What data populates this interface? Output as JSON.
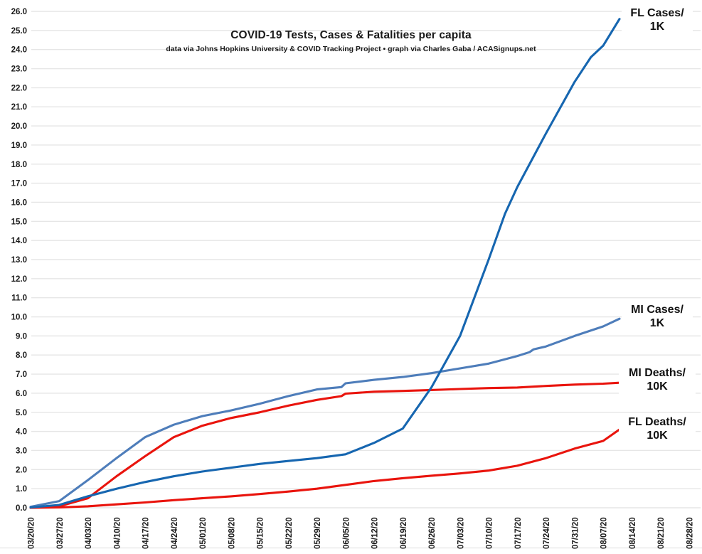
{
  "header": {
    "title": "COVID-19 Tests, Cases & Fatalities per capita",
    "subtitle": "data via Johns Hopkins University & COVID Tracking Project • graph via Charles Gaba / ACASignups.net"
  },
  "chart_data": {
    "type": "line",
    "title": "COVID-19 Tests, Cases & Fatalities per capita",
    "subtitle": "data via Johns Hopkins University & COVID Tracking Project • graph via Charles Gaba / ACASignups.net",
    "grid": true,
    "legend_position": "right-end-of-lines",
    "x_axis": {
      "tick_dates": [
        "03/20/20",
        "03/27/20",
        "04/03/20",
        "04/10/20",
        "04/17/20",
        "04/24/20",
        "05/01/20",
        "05/08/20",
        "05/15/20",
        "05/22/20",
        "05/29/20",
        "06/05/20",
        "06/12/20",
        "06/19/20",
        "06/26/20",
        "07/03/20",
        "07/10/20",
        "07/17/20",
        "07/24/20",
        "07/31/20",
        "08/07/20",
        "08/14/20",
        "08/21/20",
        "08/28/20"
      ]
    },
    "y_axis": {
      "min": 0,
      "max": 26,
      "tick_step": 1,
      "tick_labels": [
        "0.0",
        "1.0",
        "2.0",
        "3.0",
        "4.0",
        "5.0",
        "6.0",
        "7.0",
        "8.0",
        "9.0",
        "10.0",
        "11.0",
        "12.0",
        "13.0",
        "14.0",
        "15.0",
        "16.0",
        "17.0",
        "18.0",
        "19.0",
        "20.0",
        "21.0",
        "22.0",
        "23.0",
        "24.0",
        "25.0",
        "26.0"
      ]
    },
    "colors": {
      "fl_cases": "#1666b0",
      "mi_cases": "#4e7dba",
      "deaths_red": "#e9140d",
      "gridline": "#e6e6e6",
      "text": "#1a1a1a"
    },
    "series": [
      {
        "id": "mi-deaths",
        "label_line1": "MI Deaths/",
        "label_line2": "10K",
        "color": "#e9140d",
        "points": [
          [
            "03/20/20",
            0.0
          ],
          [
            "03/27/20",
            0.08
          ],
          [
            "04/03/20",
            0.5
          ],
          [
            "04/10/20",
            1.65
          ],
          [
            "04/17/20",
            2.7
          ],
          [
            "04/24/20",
            3.7
          ],
          [
            "05/01/20",
            4.3
          ],
          [
            "05/08/20",
            4.7
          ],
          [
            "05/15/20",
            5.0
          ],
          [
            "05/22/20",
            5.35
          ],
          [
            "05/29/20",
            5.65
          ],
          [
            "06/04/20",
            5.85
          ],
          [
            "06/05/20",
            5.98
          ],
          [
            "06/12/20",
            6.08
          ],
          [
            "06/19/20",
            6.12
          ],
          [
            "06/26/20",
            6.17
          ],
          [
            "07/03/20",
            6.22
          ],
          [
            "07/10/20",
            6.27
          ],
          [
            "07/17/20",
            6.3
          ],
          [
            "07/24/20",
            6.38
          ],
          [
            "07/31/20",
            6.45
          ],
          [
            "08/07/20",
            6.5
          ],
          [
            "08/11/20",
            6.55
          ]
        ]
      },
      {
        "id": "fl-deaths",
        "label_line1": "FL Deaths/",
        "label_line2": "10K",
        "color": "#e9140d",
        "points": [
          [
            "03/20/20",
            0.0
          ],
          [
            "03/27/20",
            0.02
          ],
          [
            "04/03/20",
            0.08
          ],
          [
            "04/10/20",
            0.18
          ],
          [
            "04/17/20",
            0.28
          ],
          [
            "04/24/20",
            0.4
          ],
          [
            "05/01/20",
            0.5
          ],
          [
            "05/08/20",
            0.6
          ],
          [
            "05/15/20",
            0.72
          ],
          [
            "05/22/20",
            0.85
          ],
          [
            "05/29/20",
            1.0
          ],
          [
            "06/05/20",
            1.2
          ],
          [
            "06/12/20",
            1.4
          ],
          [
            "06/19/20",
            1.55
          ],
          [
            "06/26/20",
            1.68
          ],
          [
            "07/03/20",
            1.8
          ],
          [
            "07/10/20",
            1.95
          ],
          [
            "07/17/20",
            2.2
          ],
          [
            "07/24/20",
            2.6
          ],
          [
            "07/31/20",
            3.1
          ],
          [
            "08/07/20",
            3.5
          ],
          [
            "08/11/20",
            4.1
          ]
        ]
      },
      {
        "id": "mi-cases",
        "label_line1": "MI Cases/",
        "label_line2": "1K",
        "color": "#4e7dba",
        "points": [
          [
            "03/20/20",
            0.05
          ],
          [
            "03/27/20",
            0.35
          ],
          [
            "04/03/20",
            1.45
          ],
          [
            "04/10/20",
            2.6
          ],
          [
            "04/17/20",
            3.7
          ],
          [
            "04/24/20",
            4.35
          ],
          [
            "05/01/20",
            4.8
          ],
          [
            "05/08/20",
            5.1
          ],
          [
            "05/15/20",
            5.45
          ],
          [
            "05/22/20",
            5.85
          ],
          [
            "05/29/20",
            6.2
          ],
          [
            "06/04/20",
            6.32
          ],
          [
            "06/05/20",
            6.52
          ],
          [
            "06/12/20",
            6.7
          ],
          [
            "06/19/20",
            6.85
          ],
          [
            "06/26/20",
            7.05
          ],
          [
            "07/03/20",
            7.3
          ],
          [
            "07/10/20",
            7.55
          ],
          [
            "07/17/20",
            7.95
          ],
          [
            "07/20/20",
            8.15
          ],
          [
            "07/21/20",
            8.3
          ],
          [
            "07/24/20",
            8.45
          ],
          [
            "07/31/20",
            9.0
          ],
          [
            "08/07/20",
            9.5
          ],
          [
            "08/11/20",
            9.9
          ]
        ]
      },
      {
        "id": "fl-cases",
        "label_line1": "FL Cases/",
        "label_line2": "1K",
        "color": "#1666b0",
        "points": [
          [
            "03/20/20",
            0.02
          ],
          [
            "03/27/20",
            0.15
          ],
          [
            "04/03/20",
            0.6
          ],
          [
            "04/10/20",
            1.0
          ],
          [
            "04/17/20",
            1.35
          ],
          [
            "04/24/20",
            1.65
          ],
          [
            "05/01/20",
            1.9
          ],
          [
            "05/08/20",
            2.1
          ],
          [
            "05/15/20",
            2.3
          ],
          [
            "05/22/20",
            2.45
          ],
          [
            "05/29/20",
            2.6
          ],
          [
            "06/05/20",
            2.8
          ],
          [
            "06/12/20",
            3.4
          ],
          [
            "06/19/20",
            4.15
          ],
          [
            "06/26/20",
            6.3
          ],
          [
            "07/03/20",
            9.0
          ],
          [
            "07/10/20",
            13.0
          ],
          [
            "07/14/20",
            15.4
          ],
          [
            "07/17/20",
            16.8
          ],
          [
            "07/24/20",
            19.6
          ],
          [
            "07/31/20",
            22.3
          ],
          [
            "08/04/20",
            23.6
          ],
          [
            "08/07/20",
            24.2
          ],
          [
            "08/11/20",
            25.6
          ]
        ]
      }
    ]
  }
}
